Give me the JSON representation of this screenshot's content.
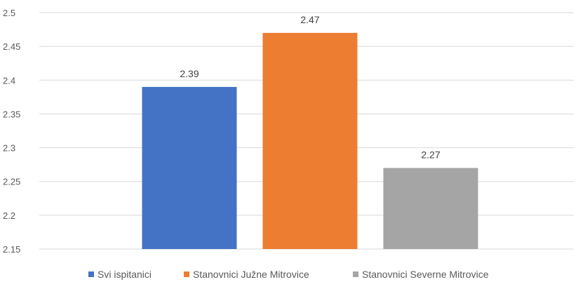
{
  "chart_data": {
    "type": "bar",
    "title": "",
    "xlabel": "",
    "ylabel": "",
    "ylim": [
      2.15,
      2.5
    ],
    "yticks": [
      2.15,
      2.2,
      2.25,
      2.3,
      2.35,
      2.4,
      2.45,
      2.5
    ],
    "grid": true,
    "legend_position": "bottom",
    "series": [
      {
        "name": "Svi ispitanici",
        "value": 2.39,
        "label": "2.39",
        "color": "#4472c4"
      },
      {
        "name": "Stanovnici Južne Mitrovice",
        "value": 2.47,
        "label": "2.47",
        "color": "#ed7d31"
      },
      {
        "name": "Stanovnici Severne Mitrovice",
        "value": 2.27,
        "label": "2.27",
        "color": "#a5a5a5"
      }
    ]
  }
}
